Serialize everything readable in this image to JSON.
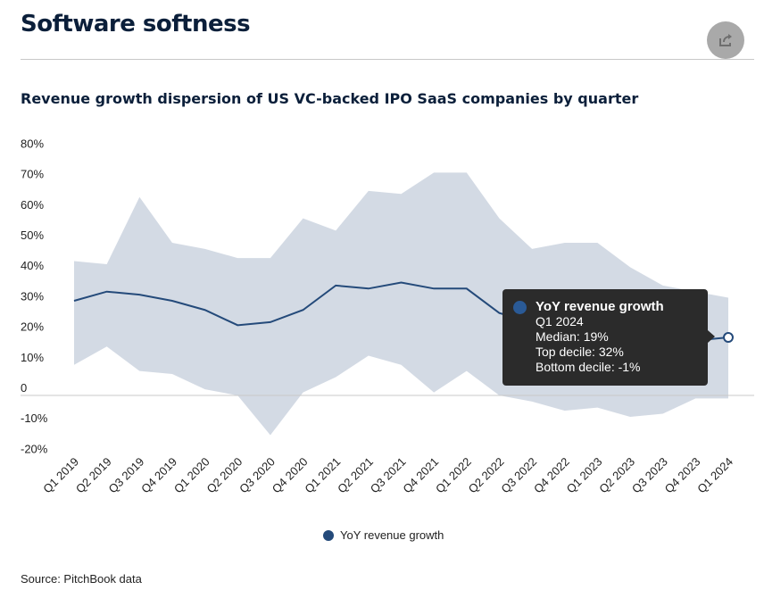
{
  "header": {
    "title": "Software softness",
    "share_icon": "share-icon"
  },
  "chart_data": {
    "type": "line",
    "title": "Revenue growth dispersion of US VC-backed IPO SaaS companies by quarter",
    "categories": [
      "Q1 2019",
      "Q2 2019",
      "Q3 2019",
      "Q4 2019",
      "Q1 2020",
      "Q2 2020",
      "Q3 2020",
      "Q4 2020",
      "Q1 2021",
      "Q2 2021",
      "Q3 2021",
      "Q4 2021",
      "Q1 2022",
      "Q2 2022",
      "Q3 2022",
      "Q4 2022",
      "Q1 2023",
      "Q2 2023",
      "Q3 2023",
      "Q4 2023",
      "Q1 2024"
    ],
    "series": [
      {
        "name": "YoY revenue growth",
        "color": "#244a7a",
        "values": [
          31,
          34,
          33,
          31,
          28,
          23,
          24,
          28,
          36,
          35,
          37,
          35,
          35,
          27,
          24,
          23,
          22,
          21,
          20,
          18,
          19
        ]
      }
    ],
    "band": {
      "color": "#d3dae4",
      "top_decile": [
        44,
        43,
        65,
        50,
        48,
        45,
        45,
        58,
        54,
        67,
        66,
        73,
        73,
        58,
        48,
        50,
        50,
        42,
        36,
        34,
        32
      ],
      "bottom_decile": [
        10,
        16,
        8,
        7,
        2,
        0,
        -13,
        1,
        6,
        13,
        10,
        1,
        8,
        0,
        -2,
        -5,
        -4,
        -7,
        -6,
        -1,
        -1
      ]
    },
    "yticks": [
      "80%",
      "70%",
      "60%",
      "50%",
      "40%",
      "30%",
      "20%",
      "10%",
      "0",
      "-10%",
      "-20%"
    ],
    "ytick_values": [
      80,
      70,
      60,
      50,
      40,
      30,
      20,
      10,
      0,
      -10,
      -20
    ],
    "ylim": [
      -20,
      80
    ],
    "grid": false,
    "legend": "bottom-center",
    "tooltip": {
      "series": "YoY revenue growth",
      "category": "Q1 2024",
      "median": "Median: 19%",
      "top": "Top decile: 32%",
      "bottom": "Bottom decile: -1%"
    }
  },
  "source": "Source: PitchBook data"
}
